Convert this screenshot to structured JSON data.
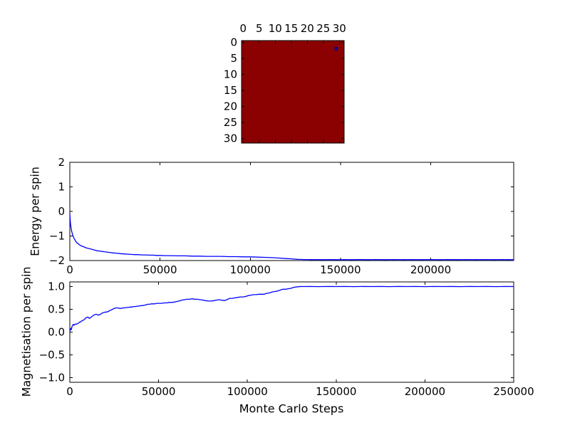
{
  "figure": {
    "background": "#ffffff",
    "axis_color": "#000000",
    "line_color": "#0000ff",
    "spin_up_color": "#8b0000",
    "spin_down_color": "#000090"
  },
  "chart_data": [
    {
      "id": "lattice",
      "type": "heatmap",
      "description": "32x32 Ising spin lattice, all spins up (dark red) except one down spin (dark blue)",
      "grid_size": 32,
      "xticks": [
        0,
        5,
        10,
        15,
        20,
        25,
        30
      ],
      "yticks": [
        0,
        5,
        10,
        15,
        20,
        25,
        30
      ],
      "xtick_labels": [
        "0",
        "5",
        "10",
        "15",
        "20",
        "25",
        "30"
      ],
      "ytick_labels": [
        "0",
        "5",
        "10",
        "15",
        "20",
        "25",
        "30"
      ],
      "minority_cells": [
        {
          "row": 2,
          "col": 29
        }
      ]
    },
    {
      "id": "energy",
      "type": "line",
      "ylabel": "Energy per spin",
      "xlim": [
        0,
        246000
      ],
      "ylim": [
        -2,
        2
      ],
      "xticks": [
        0,
        50000,
        100000,
        150000,
        200000
      ],
      "xtick_labels": [
        "0",
        "50000",
        "100000",
        "150000",
        "200000"
      ],
      "yticks": [
        2,
        1,
        0,
        -1,
        -2
      ],
      "ytick_labels": [
        "2",
        "1",
        "0",
        "−1",
        "−2"
      ],
      "x": [
        0,
        200,
        400,
        700,
        1000,
        1500,
        2000,
        2500,
        3000,
        3500,
        4000,
        5000,
        6000,
        7000,
        8000,
        9000,
        10000,
        11000,
        12000,
        13000,
        14000,
        15000,
        16000,
        17000,
        18000,
        19000,
        20000,
        22000,
        24000,
        26000,
        28000,
        30000,
        32000,
        34000,
        36000,
        38000,
        40000,
        42000,
        44000,
        46000,
        48000,
        50000,
        53000,
        56000,
        60000,
        64000,
        68000,
        72000,
        76000,
        80000,
        84000,
        88000,
        92000,
        96000,
        100000,
        104000,
        108000,
        112000,
        116000,
        120000,
        123000,
        126000,
        128000,
        130000,
        132000,
        134000,
        136000,
        140000,
        144000,
        148000,
        152000,
        156000,
        160000,
        165000,
        170000,
        175000,
        180000,
        185000,
        190000,
        195000,
        200000,
        205000,
        210000,
        215000,
        220000,
        225000,
        230000,
        235000,
        240000,
        243000,
        246000
      ],
      "y": [
        -0.08,
        -0.35,
        -0.52,
        -0.68,
        -0.8,
        -0.93,
        -1.04,
        -1.12,
        -1.18,
        -1.24,
        -1.28,
        -1.34,
        -1.39,
        -1.42,
        -1.45,
        -1.48,
        -1.5,
        -1.52,
        -1.54,
        -1.56,
        -1.58,
        -1.6,
        -1.61,
        -1.62,
        -1.63,
        -1.64,
        -1.65,
        -1.67,
        -1.69,
        -1.7,
        -1.72,
        -1.73,
        -1.74,
        -1.75,
        -1.76,
        -1.76,
        -1.77,
        -1.77,
        -1.78,
        -1.78,
        -1.79,
        -1.79,
        -1.8,
        -1.8,
        -1.81,
        -1.81,
        -1.82,
        -1.82,
        -1.83,
        -1.83,
        -1.83,
        -1.84,
        -1.84,
        -1.85,
        -1.85,
        -1.86,
        -1.87,
        -1.88,
        -1.9,
        -1.92,
        -1.93,
        -1.95,
        -1.955,
        -1.96,
        -1.96,
        -1.965,
        -1.96,
        -1.965,
        -1.96,
        -1.965,
        -1.96,
        -1.965,
        -1.96,
        -1.965,
        -1.96,
        -1.965,
        -1.96,
        -1.965,
        -1.96,
        -1.965,
        -1.96,
        -1.965,
        -1.96,
        -1.965,
        -1.96,
        -1.965,
        -1.96,
        -1.965,
        -1.96,
        -1.965,
        -1.96
      ]
    },
    {
      "id": "magnetisation",
      "type": "line",
      "ylabel": "Magnetisation per spin",
      "xlabel": "Monte Carlo Steps",
      "xlim": [
        0,
        250000
      ],
      "ylim": [
        -1.1,
        1.1
      ],
      "xticks": [
        0,
        50000,
        100000,
        150000,
        200000,
        250000
      ],
      "xtick_labels": [
        "0",
        "50000",
        "100000",
        "150000",
        "200000",
        "250000"
      ],
      "yticks": [
        1.0,
        0.5,
        0.0,
        -0.5,
        -1.0
      ],
      "ytick_labels": [
        "1.0",
        "0.5",
        "0.0",
        "−0.5",
        "−1.0"
      ],
      "x": [
        0,
        400,
        800,
        1200,
        1600,
        2000,
        2400,
        2800,
        3200,
        3600,
        4000,
        4500,
        5000,
        5500,
        6000,
        6500,
        7000,
        7500,
        8000,
        8500,
        9000,
        9500,
        10000,
        10500,
        11000,
        11500,
        12000,
        12500,
        13000,
        13500,
        14000,
        14500,
        15000,
        15500,
        16000,
        16500,
        17000,
        17500,
        18000,
        18500,
        19000,
        19500,
        20000,
        21000,
        22000,
        23000,
        24000,
        25000,
        26000,
        27000,
        28000,
        29000,
        30000,
        31000,
        32000,
        33000,
        34000,
        35000,
        36000,
        37000,
        38000,
        39000,
        40000,
        41000,
        42000,
        43000,
        44000,
        45000,
        46000,
        47000,
        48000,
        49000,
        50000,
        51500,
        53000,
        54500,
        56000,
        57500,
        59000,
        60000,
        61500,
        63000,
        64500,
        66000,
        67500,
        69000,
        70500,
        72000,
        73500,
        75000,
        76500,
        78000,
        79500,
        81000,
        82500,
        84000,
        85500,
        87000,
        88500,
        90000,
        91500,
        93000,
        94500,
        96000,
        97500,
        99000,
        100500,
        102000,
        103500,
        105000,
        106500,
        108000,
        109500,
        111000,
        112500,
        114000,
        115500,
        117000,
        118500,
        120000,
        121500,
        123000,
        124500,
        126000,
        127500,
        129000,
        130000,
        132000,
        135000,
        140000,
        145000,
        150000,
        155000,
        160000,
        165000,
        170000,
        175000,
        180000,
        185000,
        190000,
        195000,
        200000,
        205000,
        210000,
        215000,
        220000,
        225000,
        230000,
        235000,
        240000,
        245000,
        250000
      ],
      "y": [
        0.02,
        0.08,
        0.05,
        0.12,
        0.15,
        0.17,
        0.15,
        0.17,
        0.18,
        0.17,
        0.18,
        0.19,
        0.2,
        0.22,
        0.22,
        0.24,
        0.25,
        0.26,
        0.27,
        0.29,
        0.31,
        0.32,
        0.33,
        0.32,
        0.3,
        0.31,
        0.33,
        0.34,
        0.36,
        0.37,
        0.38,
        0.39,
        0.39,
        0.38,
        0.37,
        0.38,
        0.38,
        0.4,
        0.41,
        0.42,
        0.43,
        0.43,
        0.44,
        0.44,
        0.46,
        0.48,
        0.5,
        0.52,
        0.53,
        0.53,
        0.52,
        0.52,
        0.53,
        0.53,
        0.54,
        0.54,
        0.55,
        0.55,
        0.56,
        0.56,
        0.57,
        0.57,
        0.58,
        0.58,
        0.59,
        0.6,
        0.61,
        0.61,
        0.62,
        0.62,
        0.62,
        0.63,
        0.63,
        0.63,
        0.64,
        0.64,
        0.65,
        0.65,
        0.66,
        0.67,
        0.68,
        0.7,
        0.71,
        0.72,
        0.72,
        0.73,
        0.72,
        0.72,
        0.71,
        0.7,
        0.69,
        0.68,
        0.68,
        0.69,
        0.7,
        0.71,
        0.7,
        0.69,
        0.71,
        0.74,
        0.74,
        0.75,
        0.76,
        0.77,
        0.77,
        0.78,
        0.8,
        0.81,
        0.82,
        0.82,
        0.83,
        0.83,
        0.83,
        0.85,
        0.86,
        0.88,
        0.89,
        0.9,
        0.92,
        0.94,
        0.94,
        0.95,
        0.96,
        0.98,
        0.99,
        0.995,
        1.0,
        0.998,
        1.0,
        0.997,
        1.0,
        0.998,
        1.0,
        0.997,
        1.0,
        0.998,
        1.0,
        0.997,
        1.0,
        0.998,
        1.0,
        0.997,
        1.0,
        0.998,
        1.0,
        0.997,
        1.0,
        0.998,
        1.0,
        0.997,
        1.0,
        0.998
      ]
    }
  ]
}
